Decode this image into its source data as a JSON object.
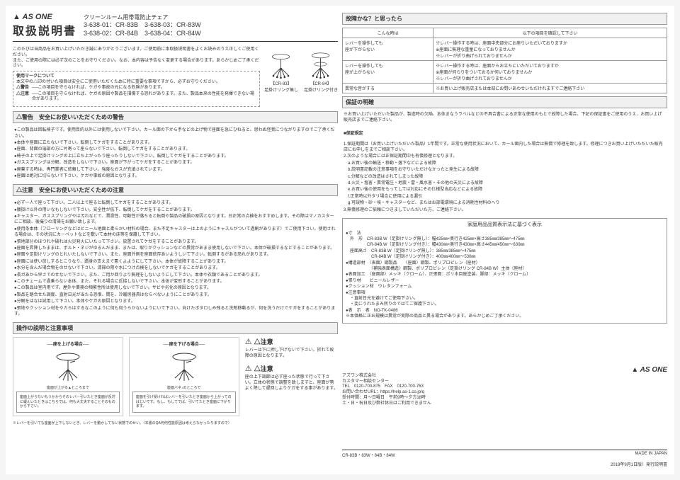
{
  "header": {
    "logo": "▲ AS ONE",
    "title": "取扱説明書",
    "subtitle": "クリーンルーム用帯電防止チェア",
    "codes_line1": "3-638-01：CR-83B　3-638-03：CR-83W",
    "codes_line2": "3-638-02：CR-84B　3-638-04：CR-84W"
  },
  "intro": {
    "line1": "このたびは当商品をお買い上げいただき誠にありがとうございます。ご使用前に本取扱説明書をよくお読みのうえ正しくご使用ください。",
    "line2": "また、ご使用の際には必ず次のことをお守りください。なお、本内容は予告なく変更する場合があります。あらかじめご了承ください。",
    "mark_title": "使用マークについて",
    "mark_text": "本文中の△印の付いた項目は安全にご使用いただくために特に重要な事項ですから、必ずお守りください。",
    "warn_label": "△警告",
    "warn_text": "──この項目を守らなければ、ケガや事故の元になる危険があります。",
    "caution_label": "△注意",
    "caution_text": "──この項目を守らなければ、ケガの原因や製品を損傷する恐れがあります。また、製品本来の性能を発揮できない場合があります。"
  },
  "chair_labels": {
    "left": "【CR-83】\n足掛けリング無し",
    "right": "【CR-84】\n足掛けリング付き"
  },
  "warning_section": {
    "head": "△警告　安全にお使いいただくための警告",
    "items": [
      "●この製品は回転椅子です。使用目的以外には使用しないで下さい。カール面の下から手などの上げ物で座面を急にひねると、思わぬ怪我につながりますのでご了承ください。",
      "●本体や座面に立たないで下さい。転倒してケガをすることがあります。",
      "●座面、背面の端部の方に片寄って座らないで下さい。転倒してケガをすることがあります。",
      "●椅子の上で足掛けリングの上に立ち上がったり座ったりしないで下さい。転倒してケガをすることがあります。",
      "●ガススプリングは分解、改造をしないで下さい。座面が下がってケガをすることがあります。",
      "●廃棄する時は、専門業者に依頼して下さい。強度なガスが充填されています。",
      "●座面は絶対に切らないで下さい。ケガや事故の原因となります。"
    ]
  },
  "caution_section": {
    "head": "△注意　安全にお使いいただくための注意",
    "items": [
      "●必ず一人で座って下さい。二人以上で座ると転倒してケガをすることがあります。",
      "●腰掛け以外の用いなもしないで下さい。安全性が低下、転倒してケガをすることがあります。",
      "●キャスター、ガススプリングやは汚れなどで、潤滑性、可動性が落ちると転倒や製品の破損の原因となります。日正常の点検をおすすめします。その際はマノカスターにご相談、後撮りの清掃をお願い致します。",
      "●使用条本体（フローリングなどはビニール地面と柔らかい材料の場合、また不足キャスターは上のようにキャスルがついて過剰があります）でご使用下さい。使用される場合は、その状況にカーペットなどを敷いて本材の床等を保護して下さい。",
      "●張地部分のほつれや破れは火災発火にいたって下さい。放置されてケガをすることがあります。",
      "●座面を昇降したままは、ボルト・ネジがゆるんだまま、または、取りかクッションなどの異常があまま使用しないで下さい。本体が破損するなどすることがあります。",
      "●座面や足掛けリングのとれいたしないで下さい。また、座面外側を座面依存あいようしいて下さい。転倒するがある恐れがあります。",
      "●座面には使い放しするとこりなり、躓身の支えまで悪くよようにして下さい。本体が故障することがあります。",
      "●水分を含んだ場合物をのせないで下さい。清掃の際や水につけ点検をしないでケガをすることがあります。",
      "●長ガあから早さでのせないで下さい。また、ご用か回りより無理をしないようにして下さい。本体や衣類であることがあります。",
      "●このチェームで過乗らない本体、また、それる場合に近接しないで下さい。本体が変形することがあります。",
      "●この製品は室内用です。屋外や業務の頻繁性所は使用しないで下さい。サビや劣化の原因となります。",
      "●製品を踏合せた調度、直射日光が当たる恐恨、間を、冷暖房器具はならべないようにことがあります。",
      "●分解をはなは試用して下さい。本体やケガの原因となります。",
      "●張地やクッション材をやカらはするなこのように何も何うらかないようにいて下さい。向けたボタロしみ残ると洗剤移動るが、何を洗うだけでケガをすることがあります。"
    ]
  },
  "operation": {
    "head": "操作の説明と注意事項",
    "raise": {
      "title": "──座を上げる場合──",
      "instruction": "立ち上がって\nレバーを\n引き上げ",
      "arrow_text": "座面が上がる▲ところまで",
      "note": "座面上がらないもうかからそのレバー引いたとき座面が反対に緩んいたときはこちらでは、何も大丈夫することそのものから下さい。"
    },
    "lower": {
      "title": "──座を下げる場合──",
      "instruction": "座ったまま\nレバーを引いて",
      "arrow_text": "座面バネ↓のところで",
      "note": "座面を引げ受ければレバーを引いたとき座面から上がってのばじいです。もし、もしてでば、引いてたとき座面に下がります。"
    },
    "caution1_label": "△注意",
    "caution1_text": "レバーは下に押し下げないで下さい。折れて故障の原因となります。",
    "caution2_label": "△注意",
    "caution2_text": "座の上下調節は必ず座った状態で行って下さい。立体の状態で調整を致しますと、座面が勢よく降して遅回しよりケガをする事があります。",
    "bottom_note": "※レバーを引いても座面が上下しないとき、レバーを動かしてない状態でのせい。（本書のQA何何性能原因は考えらなかったりますので）"
  },
  "troubleshoot": {
    "head": "故障かな？と思ったら",
    "col1": "こんな時は",
    "col2": "以下の項目を確認して下さい",
    "rows": [
      {
        "a": "レバーを操作しても\n座が下がらない",
        "b": "※レバー操作する時は、座面中央部分にお座りいただいておりますか\n※座面に無理な重量になっておりませんか\n※レバーが折り曲げられておりませんか"
      },
      {
        "a": "レバーを操作しても\n座が上がらない",
        "b": "※レバー操作する時は、座面からお立ちにいただいておりますか\n※座面が何らりをついておるか何いておりませんか\n※レバーが折り曲げされておりませんか"
      },
      {
        "a": "異常な音がする",
        "b": "※お買い上げ販売店または本部にお問いあわせいただけれますでご連絡下さい"
      }
    ]
  },
  "warranty": {
    "head": "保証の明確",
    "intro": "※お買い上げいただいた製品が、製造時の欠陥、本体まなうラベルなどの不具合書による正常な使用のもとで故障した場合、下記の保証書をご使用のうえ、お買い上げ販売店までご連絡下さい。",
    "sec_title": "■保証規定",
    "items": [
      "1.保証期間は（お買い上げいただいた製品）1年間です。正常な使用状況において、カール面内した場合は無償で修理を致します。修理につきお買い上げいただいた販売店にお申しをまでご相談下さい。",
      "2.次のような場合には正保証期間中も有償修理となります。",
      "　a.お買い後の輸送・移動・落下などによる故障",
      "　b.説明書記載の注意事項をお守りいただけなかったと発生による故障",
      "　c.分解などの改造はされてしまった故障",
      "　d.火災・塩害・異常電圧・地震・雷・風水害・その他の天災による故障",
      "　e.お買い後の使用をもってしては対応にその仕様型当応などによる故障",
      "　f.正常時以外タリ場合に使用による漏引",
      "　g.可誤物・砂・埃・キャスターなど、またはお部電環境による消耗性材料のへり",
      "3.無償修理のご依頼につきましていただいた方、ご連絡下さい。"
    ]
  },
  "spec": {
    "head": "家庭用品品質表示法に基づく表示",
    "items": [
      "●寸　法",
      "　外　形　CR-83B.W（足掛けリング無し）：幅425㎜×奥行き425㎜×高さ385㎜/385㎜〜475㎜",
      "　　　　　CR-84B.W（足掛けリング付き）：幅430㎜×奥行き430㎜×高さ445㎜/450㎜〜630㎜",
      "　座面高さ　CR-83B.W（足掛けリング無し）：385㎜/385㎜〜475㎜",
      "　　　　　　CR-84B.W（足掛けリング付き）：400㎜/400㎜〜530㎜",
      "●構造部材　〈表面〉鋼製品　　〈座面〉鋼製、ポリプロピレン（座材）",
      "　　　　　　〈補強表面構造〉鋼製、ポリプロピレン（足掛けリング CR-84B W）主体（座材）",
      "●表面加工　〈座面部〉メッキ（クローム）、正張面：ポリ木目座塗装、脚部：メッキ（クローム）",
      "●張り材　　ビニールレザー",
      "●クッション材　ウレタンフォーム",
      "●注意事項",
      "　・直射日光を避けてご使用下さい。",
      "　・変にうれたまみ所りのではてご保護下さい。",
      "●表　示　者　NO-TK-0486",
      "",
      "※本価格に正お規模は異常が実際の商品と異る場合があります。あらかじめご了承ください。"
    ]
  },
  "company": {
    "logo": "▲ AS ONE",
    "name": "アズワン株式会社",
    "dept": "カスタマー相談センター",
    "tel": "TEL　0120-700-875　FAX　0120-700-763",
    "url": "お問い合わせURL：https://help.as-1.co.jp/q",
    "hours": "受付時間：月〜日曜日　午前9時〜夕方18時\n土・日・祝日及び弊社休日はご利用できません"
  },
  "footer": {
    "left": "CR-83B・83W・84B・84W",
    "right": "MADE IN JAPAN",
    "right2": "2018年9月1日版）発行説明書"
  }
}
